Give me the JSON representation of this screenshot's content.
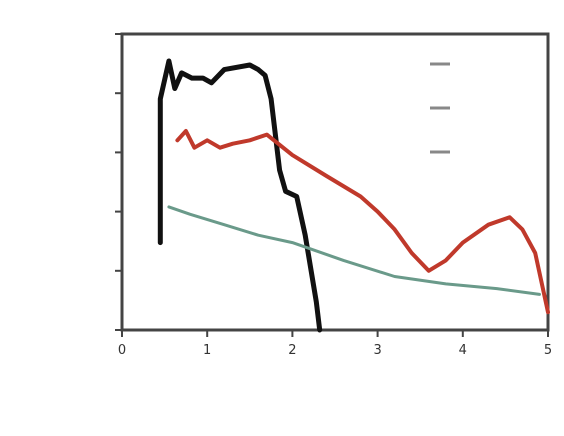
{
  "chart_data": {
    "type": "line",
    "title": "",
    "xlabel": "",
    "ylabel": "",
    "x_axis": {
      "scale": "linear",
      "min": 0.0,
      "max": 5.0,
      "tick_values": [
        0,
        1,
        2,
        3,
        4,
        5
      ],
      "tick_labels": [
        "0",
        "1",
        "2",
        "3",
        "4",
        "5"
      ]
    },
    "y_axis": {
      "scale": "log",
      "min": 0.001,
      "max": 100,
      "tick_values": [
        0.001,
        0.01,
        0.1,
        1,
        10,
        100
      ],
      "tick_labels": [
        "",
        "",
        "",
        "",
        "",
        ""
      ]
    },
    "grid": false,
    "legend_position": "top-right",
    "series": [
      {
        "name": "",
        "color": "#111111",
        "width": 5,
        "dash": "",
        "points": [
          [
            0.45,
            0.03
          ],
          [
            0.45,
            8
          ],
          [
            0.55,
            35
          ],
          [
            0.62,
            12
          ],
          [
            0.7,
            22
          ],
          [
            0.82,
            18
          ],
          [
            0.95,
            18
          ],
          [
            1.05,
            15
          ],
          [
            1.2,
            25
          ],
          [
            1.5,
            30
          ],
          [
            1.6,
            25
          ],
          [
            1.68,
            20
          ],
          [
            1.75,
            8
          ],
          [
            1.85,
            0.5
          ],
          [
            1.92,
            0.22
          ],
          [
            2.05,
            0.18
          ],
          [
            2.15,
            0.04
          ],
          [
            2.28,
            0.003
          ],
          [
            2.32,
            0.001
          ]
        ]
      },
      {
        "name": "",
        "color": "#c0392b",
        "width": 4,
        "dash": "",
        "points": [
          [
            0.65,
            1.6
          ],
          [
            0.75,
            2.3
          ],
          [
            0.85,
            1.2
          ],
          [
            1.0,
            1.6
          ],
          [
            1.15,
            1.2
          ],
          [
            1.3,
            1.4
          ],
          [
            1.5,
            1.6
          ],
          [
            1.7,
            2.0
          ],
          [
            2.0,
            0.9
          ],
          [
            2.4,
            0.4
          ],
          [
            2.8,
            0.18
          ],
          [
            3.0,
            0.1
          ],
          [
            3.2,
            0.05
          ],
          [
            3.4,
            0.02
          ],
          [
            3.6,
            0.01
          ],
          [
            3.8,
            0.015
          ],
          [
            4.0,
            0.03
          ],
          [
            4.3,
            0.06
          ],
          [
            4.55,
            0.08
          ],
          [
            4.7,
            0.05
          ],
          [
            4.85,
            0.02
          ],
          [
            5.0,
            0.002
          ]
        ]
      },
      {
        "name": "",
        "color": "#6a9a8a",
        "width": 3,
        "dash": "",
        "points": [
          [
            0.55,
            0.12
          ],
          [
            0.8,
            0.09
          ],
          [
            1.2,
            0.06
          ],
          [
            1.6,
            0.04
          ],
          [
            2.0,
            0.03
          ],
          [
            2.6,
            0.015
          ],
          [
            3.2,
            0.008
          ],
          [
            3.8,
            0.006
          ],
          [
            4.4,
            0.005
          ],
          [
            4.9,
            0.004
          ]
        ]
      }
    ],
    "legend": [
      {
        "color": "#888888",
        "label": ""
      },
      {
        "color": "#888888",
        "label": ""
      },
      {
        "color": "#888888",
        "label": ""
      }
    ]
  }
}
